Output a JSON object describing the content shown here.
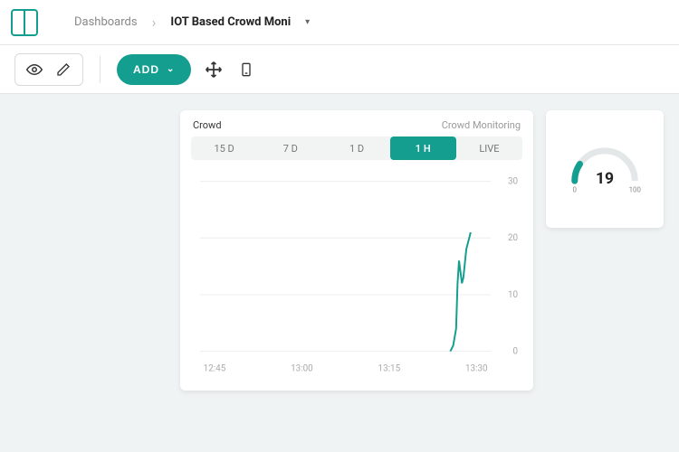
{
  "colors": {
    "accent": "#149e90",
    "background_canvas": "#f0f3f3",
    "card_bg": "#ffffff",
    "grid": "#eeeeee",
    "axis_text": "#aaaaaa",
    "tab_bg": "#f2f4f4",
    "muted_text": "#888888",
    "gauge_track": "#e3e7e7",
    "border": "#e6e6e6"
  },
  "breadcrumb": {
    "root": "Dashboards",
    "current": "IOT Based Crowd Moni"
  },
  "toolbar": {
    "add_label": "ADD"
  },
  "chart": {
    "type": "line",
    "title": "Crowd",
    "subtitle": "Crowd Monitoring",
    "ranges": [
      "15 D",
      "7 D",
      "1 D",
      "1 H",
      "LIVE"
    ],
    "active_range": "1 H",
    "ylim": [
      0,
      30
    ],
    "yticks": [
      0,
      10,
      20,
      30
    ],
    "xticks": [
      "12:45",
      "13:00",
      "13:15",
      "13:30"
    ],
    "line_color": "#149e90",
    "line_width": 2,
    "grid_color": "#eeeeee",
    "background_color": "#ffffff",
    "axis_fontsize": 10,
    "series": [
      {
        "t": 0.86,
        "v": 0
      },
      {
        "t": 0.87,
        "v": 1
      },
      {
        "t": 0.88,
        "v": 4
      },
      {
        "t": 0.885,
        "v": 12
      },
      {
        "t": 0.89,
        "v": 16
      },
      {
        "t": 0.895,
        "v": 14
      },
      {
        "t": 0.9,
        "v": 12
      },
      {
        "t": 0.905,
        "v": 13
      },
      {
        "t": 0.915,
        "v": 18
      },
      {
        "t": 0.93,
        "v": 21
      }
    ]
  },
  "gauge": {
    "type": "gauge",
    "value": 19,
    "min": 0,
    "max": 100,
    "arc_color": "#149e90",
    "track_color": "#e3e7e7",
    "value_fontsize": 20,
    "label_fontsize": 9
  }
}
